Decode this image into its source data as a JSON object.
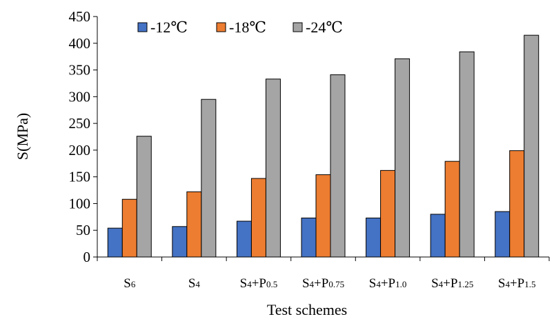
{
  "chart_data": {
    "type": "bar",
    "title": "",
    "xlabel": "Test schemes",
    "ylabel": "S(MPa)",
    "ylim": [
      0,
      450
    ],
    "yticks": [
      0,
      50,
      100,
      150,
      200,
      250,
      300,
      350,
      400,
      450
    ],
    "grid": false,
    "legend_position": "top-left",
    "categories": [
      {
        "base": "S",
        "sub": "6",
        "sup_base": "",
        "sup_sub": ""
      },
      {
        "base": "S",
        "sub": "4",
        "sup_base": "",
        "sup_sub": ""
      },
      {
        "base": "S",
        "sub": "4",
        "sup_base": "+P",
        "sup_sub": "0.5"
      },
      {
        "base": "S",
        "sub": "4",
        "sup_base": "+P",
        "sup_sub": "0.75"
      },
      {
        "base": "S",
        "sub": "4",
        "sup_base": "+P",
        "sup_sub": "1.0"
      },
      {
        "base": "S",
        "sub": "4",
        "sup_base": "+P",
        "sup_sub": "1.25"
      },
      {
        "base": "S",
        "sub": "4",
        "sup_base": "+P",
        "sup_sub": "1.5"
      }
    ],
    "series": [
      {
        "name": "-12℃",
        "color": "#4472C4",
        "values": [
          54,
          57,
          67,
          73,
          73,
          80,
          85
        ]
      },
      {
        "name": "-18℃",
        "color": "#ED7D31",
        "values": [
          108,
          122,
          147,
          154,
          162,
          179,
          199
        ]
      },
      {
        "name": "-24℃",
        "color": "#A5A5A5",
        "values": [
          226,
          295,
          333,
          341,
          371,
          384,
          415
        ]
      }
    ]
  }
}
